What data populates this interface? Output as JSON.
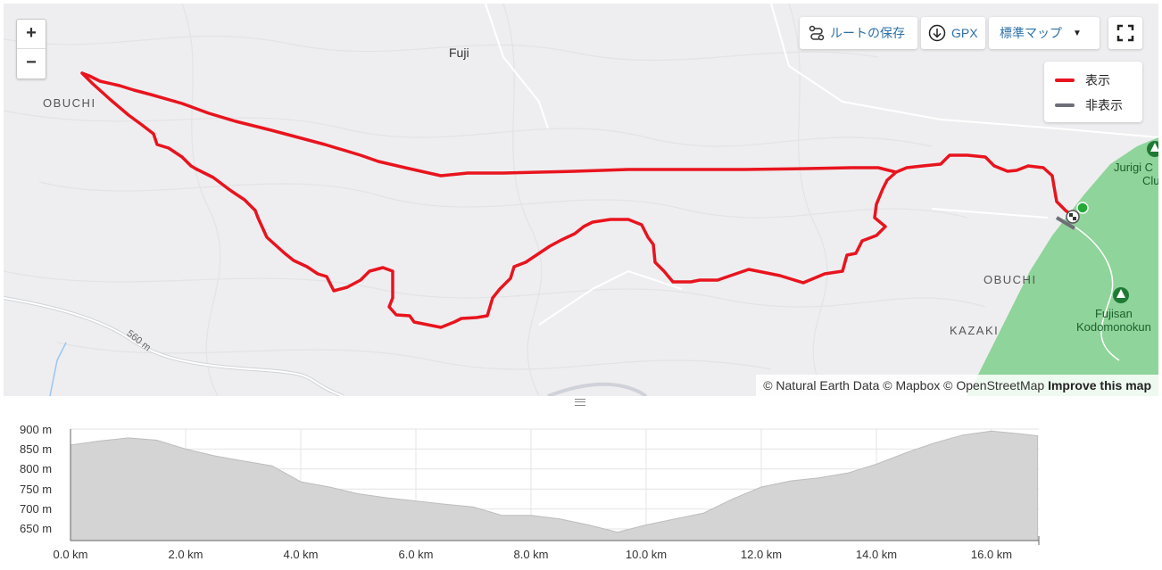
{
  "map": {
    "zoom_in": "+",
    "zoom_out": "−",
    "toolbar": {
      "save_label": "ルートの保存",
      "gpx_label": "GPX",
      "style_label": "標準マップ",
      "style_caret": "▼"
    },
    "legend": [
      {
        "label": "表示",
        "color": "#e8141e"
      },
      {
        "label": "非表示",
        "color": "#6e6e78"
      }
    ],
    "labels": {
      "fuji": "Fuji",
      "obuchi_west": "OBUCHI",
      "obuchi_east": "OBUCHI",
      "kazaki": "KAZAKI",
      "jurigi": "Jurigi C",
      "jurigi_2": "Club",
      "fujisan_1": "Fujisan",
      "fujisan_2": "Kodomonokun",
      "road_label": "560 m"
    },
    "attribution": {
      "text": "© Natural Earth Data © Mapbox © OpenStreetMap",
      "improve": "Improve this map"
    },
    "colors": {
      "route": "#e8141e",
      "park": "#8fd49a",
      "start": "#22aa33"
    }
  },
  "profile": {
    "y_ticks": [
      "900 m",
      "850 m",
      "800 m",
      "750 m",
      "700 m",
      "650 m"
    ],
    "x_ticks": [
      "0.0 km",
      "2.0 km",
      "4.0 km",
      "6.0 km",
      "8.0 km",
      "10.0 km",
      "12.0 km",
      "14.0 km",
      "16.0 km"
    ],
    "elevation_km": [
      0,
      0.5,
      1,
      1.5,
      2,
      2.5,
      3,
      3.5,
      4,
      4.5,
      5,
      5.5,
      6,
      6.5,
      7,
      7.5,
      8,
      8.5,
      9,
      9.5,
      10,
      10.5,
      11,
      11.5,
      12,
      12.5,
      13,
      13.5,
      14,
      14.5,
      15,
      15.5,
      16,
      16.5,
      16.8
    ],
    "elevation_m": [
      860,
      870,
      878,
      872,
      850,
      833,
      820,
      808,
      768,
      755,
      738,
      728,
      720,
      712,
      705,
      684,
      684,
      675,
      660,
      642,
      660,
      675,
      690,
      725,
      755,
      770,
      778,
      790,
      812,
      840,
      865,
      885,
      895,
      888,
      883
    ],
    "fill": "#d4d4d4"
  }
}
